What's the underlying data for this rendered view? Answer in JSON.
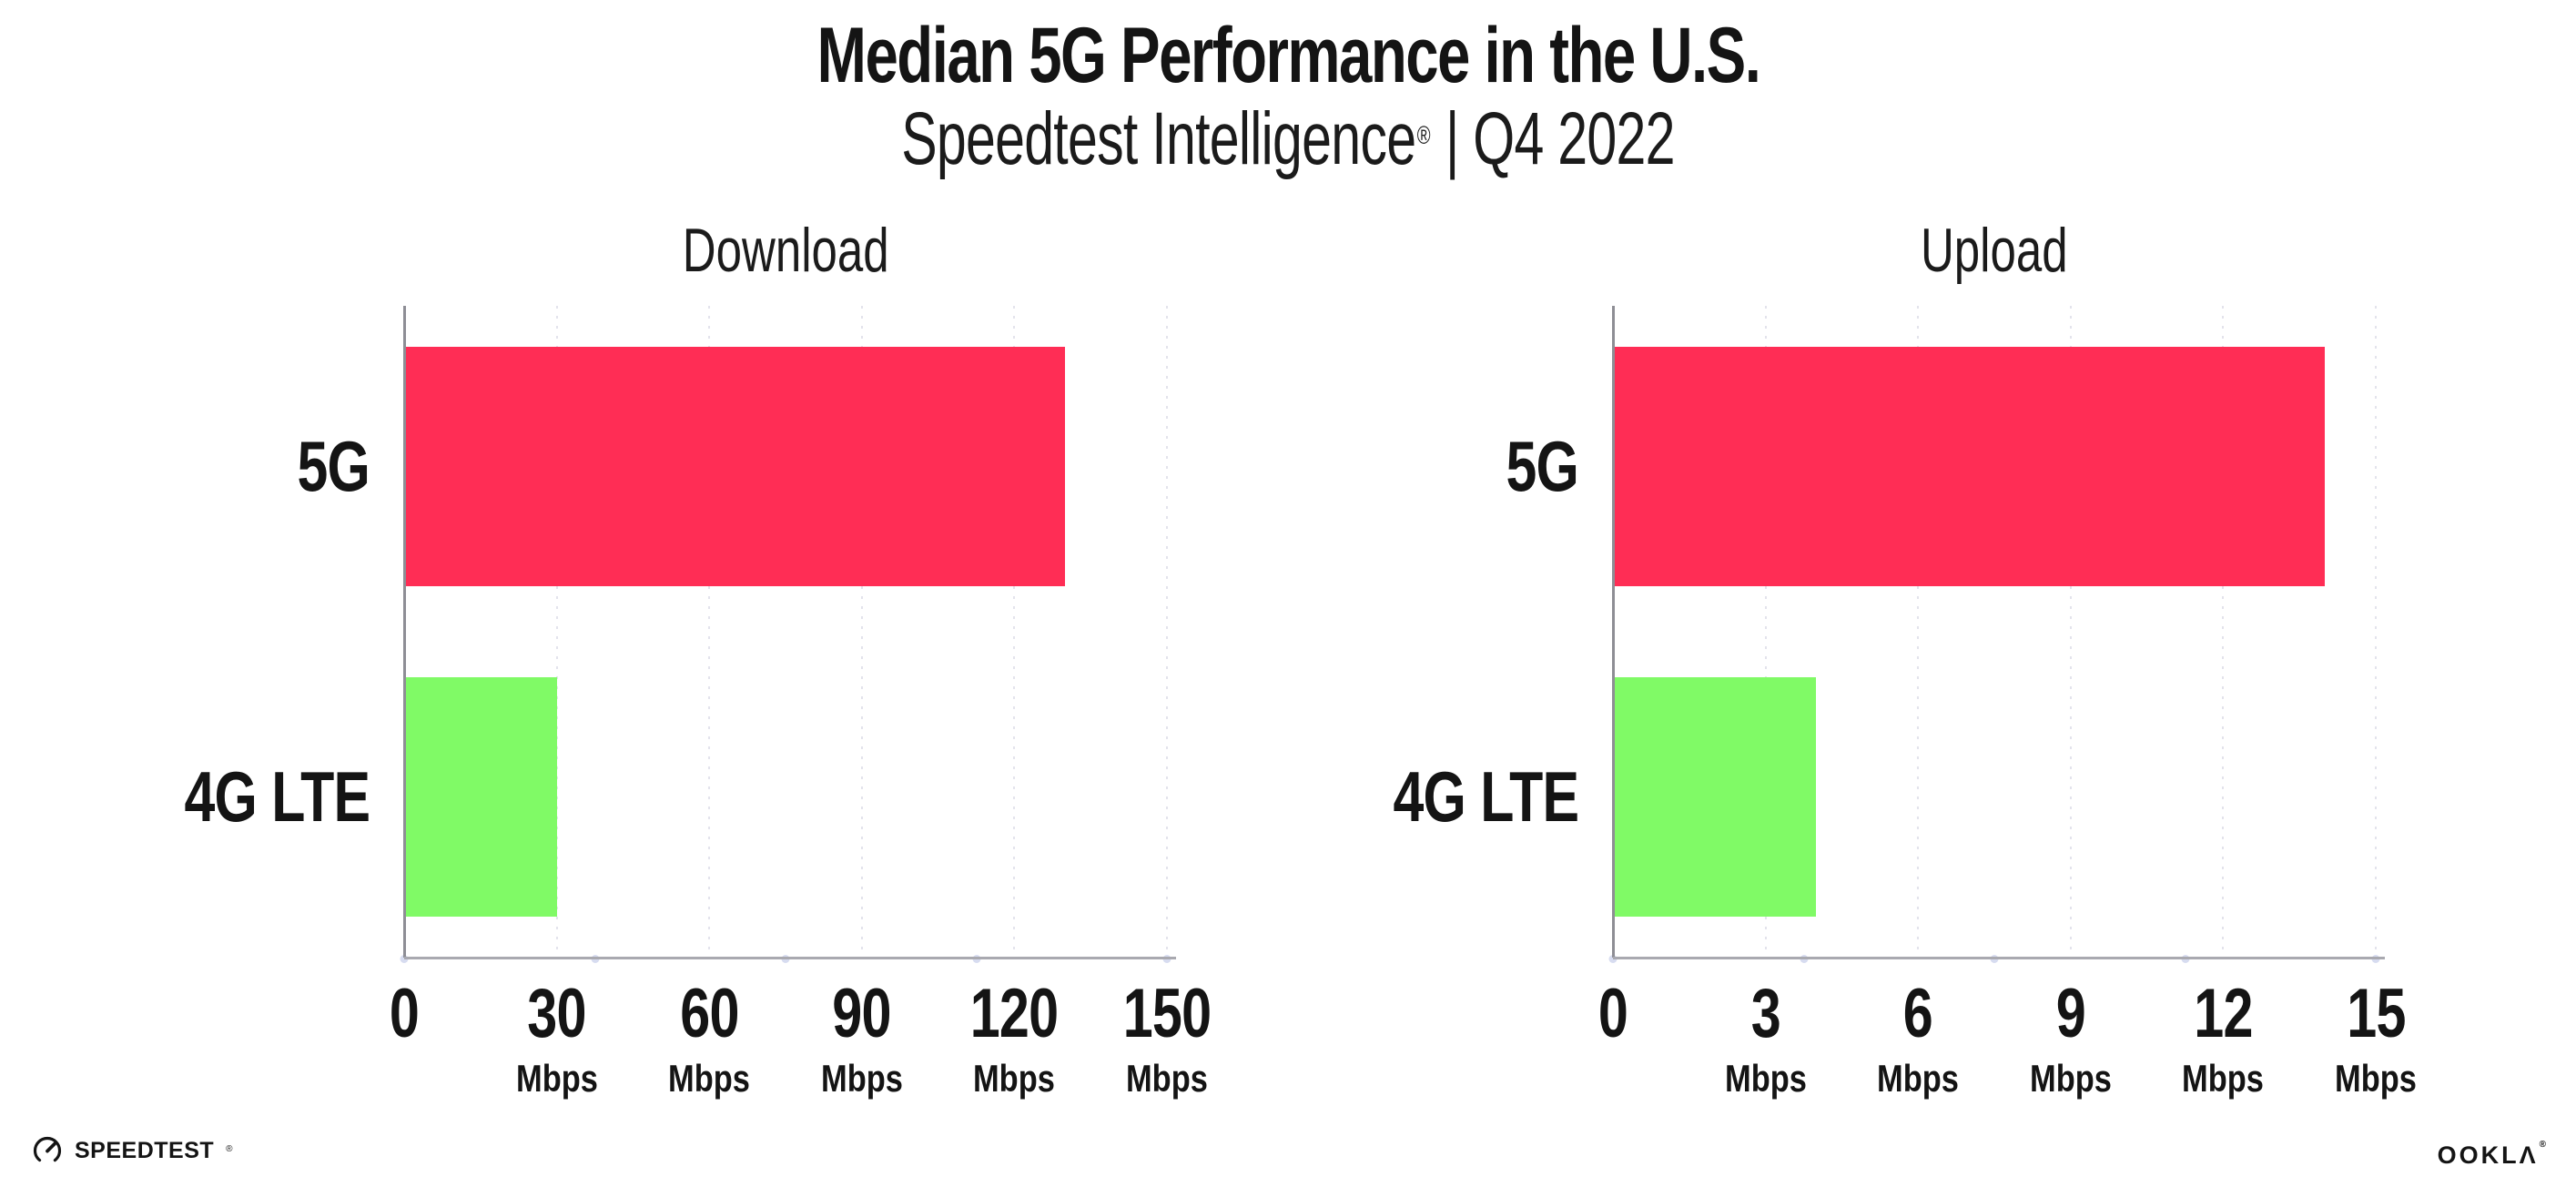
{
  "header": {
    "title": "Median 5G Performance in the U.S.",
    "subtitle_brand": "Speedtest Intelligence",
    "subtitle_reg": "®",
    "subtitle_tail": " | Q4 2022"
  },
  "chart_data": [
    {
      "type": "bar",
      "orientation": "horizontal",
      "title": "Download",
      "categories": [
        "5G",
        "4G LTE"
      ],
      "values": [
        130,
        30
      ],
      "unit": "Mbps",
      "xlim": [
        0,
        150
      ],
      "xticks": [
        0,
        30,
        60,
        90,
        120,
        150
      ],
      "bar_colors": [
        "#FF2D55",
        "#80FA66"
      ],
      "grid": "dotted-vertical",
      "legend": "none"
    },
    {
      "type": "bar",
      "orientation": "horizontal",
      "title": "Upload",
      "categories": [
        "5G",
        "4G LTE"
      ],
      "values": [
        14,
        4
      ],
      "unit": "Mbps",
      "xlim": [
        0,
        15
      ],
      "xticks": [
        0,
        3,
        6,
        9,
        12,
        15
      ],
      "bar_colors": [
        "#FF2D55",
        "#80FA66"
      ],
      "grid": "dotted-vertical",
      "legend": "none"
    }
  ],
  "footer": {
    "speedtest_label": "SPEEDTEST",
    "speedtest_reg": "®",
    "ookla_label": "OOKLΛ",
    "ookla_reg": "®"
  },
  "style": {
    "bar_color_5g": "#FF2D55",
    "bar_color_4g": "#80FA66",
    "gridline_color": "#E3E3EC",
    "axis_color": "#A9A9B0",
    "text_color": "#141414"
  }
}
